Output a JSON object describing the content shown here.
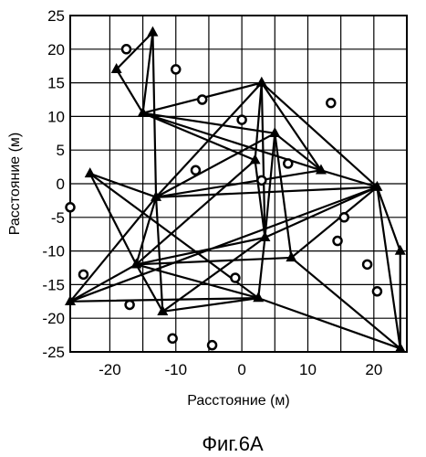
{
  "chart_data": {
    "type": "scatter",
    "caption": "Фиг.6А",
    "xlabel": "Расстояние (м)",
    "ylabel": "Расстояние (м)",
    "xlim": [
      -26,
      25
    ],
    "ylim": [
      -25,
      25
    ],
    "x_ticks": [
      -20,
      -15,
      -10,
      -5,
      0,
      5,
      10,
      15,
      20
    ],
    "x_tick_labels": [
      "-20",
      "",
      "-10",
      "",
      "0",
      "",
      "10",
      "",
      "20"
    ],
    "y_ticks": [
      -25,
      -20,
      -15,
      -10,
      -5,
      0,
      5,
      10,
      15,
      20,
      25
    ],
    "y_tick_labels": [
      "-25",
      "-20",
      "-15",
      "-10",
      "-5",
      "0",
      "5",
      "10",
      "15",
      "20",
      "25"
    ],
    "grid": true,
    "series": [
      {
        "marker": "triangle",
        "points": [
          {
            "x": -13.5,
            "y": 22.5
          },
          {
            "x": -19,
            "y": 17
          },
          {
            "x": -15,
            "y": 10.5
          },
          {
            "x": 3,
            "y": 15
          },
          {
            "x": 5,
            "y": 7.5
          },
          {
            "x": 2,
            "y": 3.5
          },
          {
            "x": 12,
            "y": 2
          },
          {
            "x": -23,
            "y": 1.5
          },
          {
            "x": -13,
            "y": -2
          },
          {
            "x": 20.5,
            "y": -0.5
          },
          {
            "x": 3.5,
            "y": -8
          },
          {
            "x": 7.5,
            "y": -11
          },
          {
            "x": -16,
            "y": -12
          },
          {
            "x": 24,
            "y": -10
          },
          {
            "x": -26,
            "y": -17.5
          },
          {
            "x": -12,
            "y": -19
          },
          {
            "x": 2.5,
            "y": -17
          },
          {
            "x": 24,
            "y": -24.5
          }
        ]
      },
      {
        "marker": "circle",
        "points": [
          {
            "x": -17.5,
            "y": 20
          },
          {
            "x": -10,
            "y": 17
          },
          {
            "x": -6,
            "y": 12.5
          },
          {
            "x": 0,
            "y": 9.5
          },
          {
            "x": 13.5,
            "y": 12
          },
          {
            "x": -7,
            "y": 2
          },
          {
            "x": 7,
            "y": 3
          },
          {
            "x": 3,
            "y": 0.5
          },
          {
            "x": -26,
            "y": -3.5
          },
          {
            "x": 15.5,
            "y": -5
          },
          {
            "x": 14.5,
            "y": -8.5
          },
          {
            "x": -24,
            "y": -13.5
          },
          {
            "x": 19,
            "y": -12
          },
          {
            "x": -1,
            "y": -14
          },
          {
            "x": 20.5,
            "y": -16
          },
          {
            "x": -17,
            "y": -18
          },
          {
            "x": -10.5,
            "y": -23
          },
          {
            "x": -4.5,
            "y": -24
          }
        ]
      }
    ],
    "links": [
      [
        0,
        1
      ],
      [
        0,
        2
      ],
      [
        1,
        2
      ],
      [
        0,
        8
      ],
      [
        2,
        3
      ],
      [
        3,
        8
      ],
      [
        2,
        4
      ],
      [
        2,
        5
      ],
      [
        2,
        6
      ],
      [
        3,
        5
      ],
      [
        3,
        6
      ],
      [
        3,
        9
      ],
      [
        3,
        10
      ],
      [
        4,
        6
      ],
      [
        4,
        10
      ],
      [
        4,
        11
      ],
      [
        4,
        8
      ],
      [
        6,
        9
      ],
      [
        6,
        8
      ],
      [
        7,
        8
      ],
      [
        7,
        12
      ],
      [
        7,
        16
      ],
      [
        8,
        12
      ],
      [
        8,
        14
      ],
      [
        8,
        15
      ],
      [
        8,
        9
      ],
      [
        9,
        11
      ],
      [
        9,
        13
      ],
      [
        9,
        17
      ],
      [
        9,
        10
      ],
      [
        9,
        14
      ],
      [
        10,
        12
      ],
      [
        10,
        15
      ],
      [
        10,
        16
      ],
      [
        11,
        17
      ],
      [
        11,
        12
      ],
      [
        12,
        14
      ],
      [
        12,
        15
      ],
      [
        12,
        16
      ],
      [
        13,
        17
      ],
      [
        14,
        16
      ],
      [
        15,
        16
      ],
      [
        16,
        17
      ],
      [
        5,
        10
      ],
      [
        5,
        12
      ]
    ]
  }
}
